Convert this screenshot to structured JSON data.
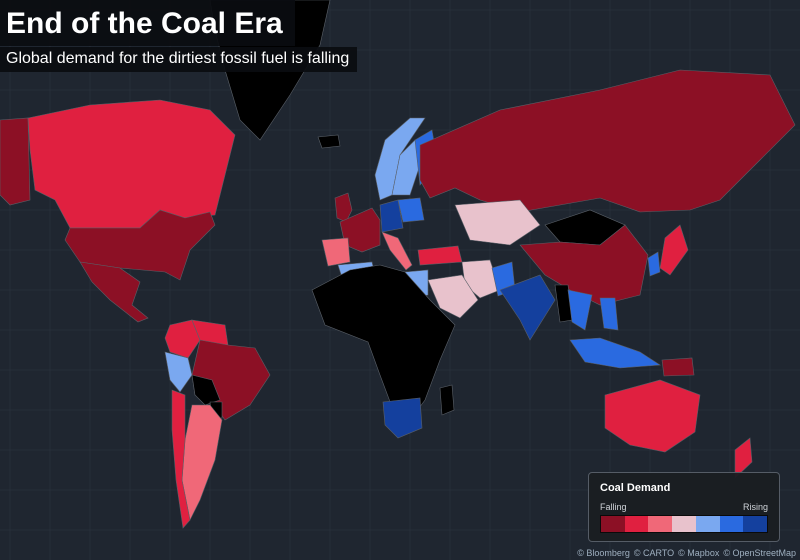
{
  "title": "End of the Coal Era",
  "subtitle": "Global demand for the dirtiest fossil fuel is falling",
  "legend": {
    "title": "Coal Demand",
    "low_label": "Falling",
    "high_label": "Rising",
    "colors": [
      "#8c1025",
      "#e02040",
      "#f06878",
      "#e8c2cc",
      "#7aa8f0",
      "#2a6ae0",
      "#14409e"
    ]
  },
  "colors": {
    "ocean": "#1f2630",
    "grid": "#2c3440",
    "no_data": "#000000",
    "border": "#5a6068"
  },
  "attribution": [
    "© Bloomberg",
    "© CARTO",
    "© Mapbox",
    "© OpenStreetMap"
  ],
  "regions": [
    {
      "name": "Alaska",
      "level": 1
    },
    {
      "name": "Canada",
      "level": 2
    },
    {
      "name": "Greenland",
      "level": null
    },
    {
      "name": "United States",
      "level": 1
    },
    {
      "name": "Mexico",
      "level": 1
    },
    {
      "name": "Colombia",
      "level": 2
    },
    {
      "name": "Venezuela",
      "level": 2
    },
    {
      "name": "Peru",
      "level": 5
    },
    {
      "name": "Brazil",
      "level": 1
    },
    {
      "name": "Bolivia",
      "level": null
    },
    {
      "name": "Paraguay",
      "level": null
    },
    {
      "name": "Argentina",
      "level": 3
    },
    {
      "name": "Chile",
      "level": 2
    },
    {
      "name": "Iceland",
      "level": null
    },
    {
      "name": "United Kingdom",
      "level": 1
    },
    {
      "name": "Norway",
      "level": 5
    },
    {
      "name": "Sweden",
      "level": 5
    },
    {
      "name": "Finland",
      "level": 6
    },
    {
      "name": "Western Europe",
      "level": 1
    },
    {
      "name": "Germany",
      "level": 7
    },
    {
      "name": "Poland",
      "level": 6
    },
    {
      "name": "Iberia",
      "level": 3
    },
    {
      "name": "Italy",
      "level": 3
    },
    {
      "name": "Russia",
      "level": 1
    },
    {
      "name": "Kazakhstan",
      "level": 4
    },
    {
      "name": "Mongolia",
      "level": null
    },
    {
      "name": "China",
      "level": 1
    },
    {
      "name": "Japan",
      "level": 2
    },
    {
      "name": "Korea",
      "level": 6
    },
    {
      "name": "Turkey",
      "level": 2
    },
    {
      "name": "Iran",
      "level": 4
    },
    {
      "name": "Arabia",
      "level": 4
    },
    {
      "name": "Pakistan",
      "level": 6
    },
    {
      "name": "India",
      "level": 7
    },
    {
      "name": "Myanmar",
      "level": null
    },
    {
      "name": "Indochina",
      "level": 6
    },
    {
      "name": "Algeria",
      "level": 5
    },
    {
      "name": "Egypt",
      "level": 5
    },
    {
      "name": "Africa",
      "level": null
    },
    {
      "name": "South Africa",
      "level": 7
    },
    {
      "name": "Madagascar",
      "level": null
    },
    {
      "name": "Indonesia",
      "level": 6
    },
    {
      "name": "Philippines",
      "level": 6
    },
    {
      "name": "Papua",
      "level": 1
    },
    {
      "name": "Australia",
      "level": 2
    },
    {
      "name": "New Zealand",
      "level": 2
    }
  ]
}
